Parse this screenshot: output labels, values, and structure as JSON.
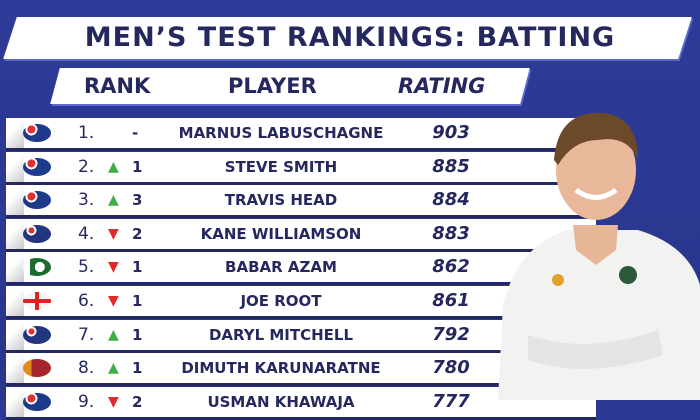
{
  "title": "MEN’S TEST RANKINGS: BATTING",
  "headers": {
    "rank": "RANK",
    "player": "PLAYER",
    "rating": "RATING"
  },
  "colors": {
    "background": "#2d3a94",
    "text": "#25285e",
    "up": "#3fae49",
    "down": "#e02a2a"
  },
  "rows": [
    {
      "rank": "1.",
      "move": "none",
      "arrow": "",
      "change": "-",
      "player": "MARNUS LABUSCHAGNE",
      "rating": "903",
      "flag": "australia"
    },
    {
      "rank": "2.",
      "move": "up",
      "arrow": "▲",
      "change": "1",
      "player": "STEVE SMITH",
      "rating": "885",
      "flag": "australia"
    },
    {
      "rank": "3.",
      "move": "up",
      "arrow": "▲",
      "change": "3",
      "player": "TRAVIS HEAD",
      "rating": "884",
      "flag": "australia"
    },
    {
      "rank": "4.",
      "move": "down",
      "arrow": "▼",
      "change": "2",
      "player": "KANE WILLIAMSON",
      "rating": "883",
      "flag": "new-zealand"
    },
    {
      "rank": "5.",
      "move": "down",
      "arrow": "▼",
      "change": "1",
      "player": "BABAR AZAM",
      "rating": "862",
      "flag": "pakistan"
    },
    {
      "rank": "6.",
      "move": "down",
      "arrow": "▼",
      "change": "1",
      "player": "JOE ROOT",
      "rating": "861",
      "flag": "england"
    },
    {
      "rank": "7.",
      "move": "up",
      "arrow": "▲",
      "change": "1",
      "player": "DARYL MITCHELL",
      "rating": "792",
      "flag": "new-zealand"
    },
    {
      "rank": "8.",
      "move": "up",
      "arrow": "▲",
      "change": "1",
      "player": "DIMUTH KARUNARATNE",
      "rating": "780",
      "flag": "sri-lanka"
    },
    {
      "rank": "9.",
      "move": "down",
      "arrow": "▼",
      "change": "2",
      "player": "USMAN KHAWAJA",
      "rating": "777",
      "flag": "australia"
    }
  ]
}
